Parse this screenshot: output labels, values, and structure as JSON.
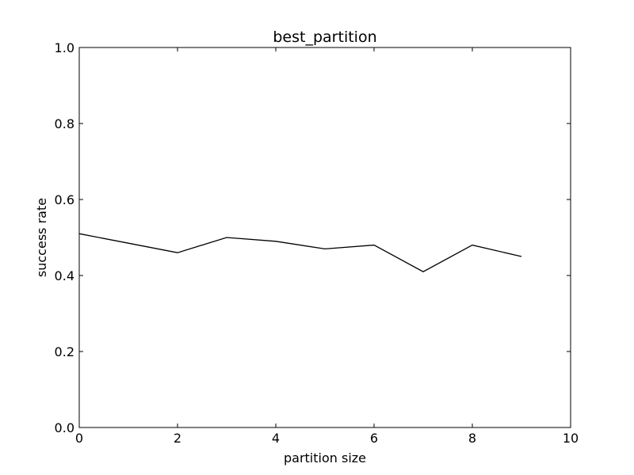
{
  "chart_data": {
    "type": "line",
    "title": "best_partition",
    "xlabel": "partition size",
    "ylabel": "success rate",
    "xlim": [
      0,
      10
    ],
    "ylim": [
      0.0,
      1.0
    ],
    "xticks": [
      0,
      2,
      4,
      6,
      8,
      10
    ],
    "xtick_labels": [
      "0",
      "2",
      "4",
      "6",
      "8",
      "10"
    ],
    "yticks": [
      0.0,
      0.2,
      0.4,
      0.6,
      0.8,
      1.0
    ],
    "ytick_labels": [
      "0.0",
      "0.2",
      "0.4",
      "0.6",
      "0.8",
      "1.0"
    ],
    "grid": false,
    "legend": "none",
    "series": [
      {
        "color": "#000000",
        "x": [
          0,
          1,
          2,
          3,
          4,
          5,
          6,
          7,
          8,
          9
        ],
        "y": [
          0.51,
          0.485,
          0.46,
          0.5,
          0.49,
          0.47,
          0.48,
          0.41,
          0.48,
          0.45
        ]
      }
    ]
  }
}
